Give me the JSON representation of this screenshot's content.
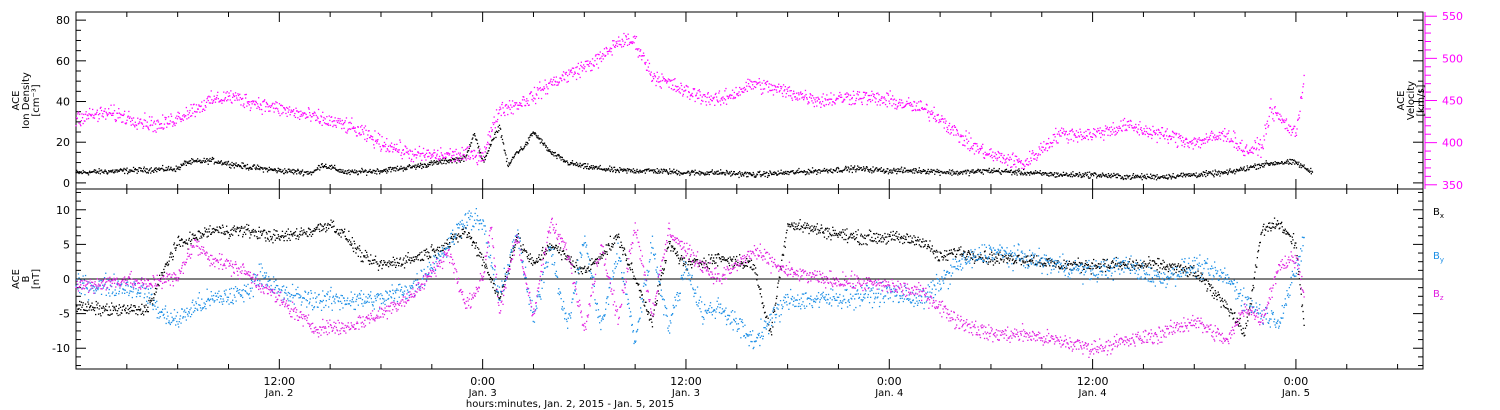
{
  "colors": {
    "density": "#000000",
    "velocity": "#ff00ff",
    "bx": "#000000",
    "by": "#1e90e6",
    "bz": "#e020e0"
  },
  "chart_data": {
    "xlabel": "hours:minutes, Jan. 2, 2015 - Jan. 5, 2015",
    "x_unit": "hours since 2015-01-02 00:00 UT",
    "xlim": [
      0,
      79.5
    ],
    "x_ticks": [
      {
        "x": 12,
        "time": "12:00",
        "date": "Jan. 2"
      },
      {
        "x": 24,
        "time": "0:00",
        "date": "Jan. 3"
      },
      {
        "x": 36,
        "time": "12:00",
        "date": "Jan. 3"
      },
      {
        "x": 48,
        "time": "0:00",
        "date": "Jan. 4"
      },
      {
        "x": 60,
        "time": "12:00",
        "date": "Jan. 4"
      },
      {
        "x": 72,
        "time": "0:00",
        "date": "Jan. 5"
      }
    ],
    "panels": [
      {
        "type": "scatter",
        "name": "plasma",
        "ylabel_left": [
          "ACE",
          "Ion Density",
          "[cm⁻³]"
        ],
        "ylabel_right": [
          "ACE",
          "Velocity",
          "[km/s]"
        ],
        "ylim_left": [
          -3,
          84
        ],
        "ylim_right": [
          345,
          555
        ],
        "yticks_left": [
          0,
          20,
          40,
          60,
          80
        ],
        "yticks_right": [
          350,
          400,
          450,
          500,
          550
        ],
        "series": [
          {
            "key": "density",
            "axis": "left",
            "noise": 1.2,
            "x": [
              0,
              3,
              6,
              6.5,
              8,
              10,
              12,
              14,
              14.5,
              16,
              18,
              20,
              22,
              23,
              23.5,
              24,
              25,
              25.5,
              26,
              26.5,
              27,
              28,
              29,
              30,
              32,
              34,
              36,
              38,
              40,
              42,
              44,
              46,
              48,
              50,
              52,
              54,
              56,
              58,
              60,
              62,
              64,
              66,
              68,
              70,
              71,
              72,
              73
            ],
            "y": [
              5,
              6,
              7,
              10,
              11,
              8,
              6,
              5,
              9,
              5,
              6,
              8,
              11,
              12,
              25,
              10,
              28,
              8,
              15,
              18,
              25,
              15,
              10,
              8,
              6,
              6,
              5,
              5,
              4,
              5,
              6,
              7,
              6,
              6,
              5,
              6,
              5,
              4,
              4,
              3,
              3,
              4,
              5,
              9,
              10,
              10,
              5
            ]
          },
          {
            "key": "velocity",
            "axis": "right",
            "noise": 8,
            "x": [
              0,
              2,
              4,
              5,
              6,
              7,
              8,
              9,
              10,
              12,
              14,
              15,
              16,
              18,
              20,
              22,
              24,
              25,
              26,
              27,
              28,
              30,
              31,
              32,
              33,
              34,
              35,
              36,
              38,
              40,
              42,
              44,
              46,
              48,
              50,
              51,
              52,
              53,
              54,
              56,
              58,
              60,
              62,
              64,
              66,
              68,
              69,
              70,
              70.5,
              71,
              72,
              72.5
            ],
            "y": [
              430,
              435,
              425,
              420,
              430,
              440,
              450,
              455,
              450,
              440,
              430,
              425,
              420,
              400,
              385,
              385,
              385,
              440,
              445,
              455,
              470,
              490,
              500,
              520,
              520,
              480,
              470,
              460,
              450,
              470,
              460,
              450,
              455,
              450,
              440,
              430,
              410,
              395,
              385,
              375,
              410,
              410,
              420,
              410,
              400,
              410,
              390,
              395,
              440,
              430,
              410,
              480
            ]
          }
        ]
      },
      {
        "type": "scatter",
        "name": "magnetic-field",
        "ylabel_left": [
          "ACE",
          "B",
          "[nT]"
        ],
        "ylim_left": [
          -13,
          13
        ],
        "yticks_left": [
          -10,
          -5,
          0,
          5,
          10
        ],
        "zero_line": true,
        "legend_labels": [
          "Bx",
          "By",
          "Bz"
        ],
        "series": [
          {
            "key": "bx",
            "name": "Bx",
            "axis": "left",
            "noise": 0.8,
            "x": [
              0,
              2,
              4,
              4.5,
              5,
              5.5,
              6,
              7,
              8,
              10,
              12,
              14,
              15,
              16,
              17,
              18,
              20,
              22,
              23,
              24,
              25,
              26,
              27,
              28,
              30,
              32,
              33,
              34,
              35,
              36,
              38,
              40,
              41,
              42,
              44,
              46,
              48,
              50,
              51,
              52,
              54,
              56,
              58,
              60,
              62,
              64,
              66,
              68,
              69,
              70,
              71,
              72,
              72.5
            ],
            "y": [
              -4,
              -4.5,
              -4.5,
              -3,
              0,
              3,
              5,
              6,
              7,
              7,
              6,
              7,
              8,
              6,
              3,
              2,
              3,
              5,
              7,
              3,
              -3,
              6,
              2,
              5,
              1,
              6,
              0,
              -6,
              5,
              2,
              3,
              2,
              -8,
              8,
              7,
              6,
              6,
              5.5,
              3,
              4,
              3,
              3,
              2,
              2,
              2,
              2,
              1,
              -4,
              -8,
              7,
              8,
              5,
              -7
            ]
          },
          {
            "key": "by",
            "name": "By",
            "axis": "left",
            "noise": 1.3,
            "x": [
              0,
              2,
              4,
              5,
              6,
              7,
              8,
              10,
              11,
              12,
              14,
              16,
              18,
              20,
              22,
              23,
              24,
              25,
              26,
              27,
              28,
              29,
              30,
              31,
              32,
              33,
              34,
              35,
              36,
              37,
              38,
              40,
              42,
              44,
              46,
              48,
              50,
              52,
              53,
              54,
              56,
              58,
              60,
              62,
              64,
              66,
              68,
              69,
              70,
              71,
              72,
              72.5
            ],
            "y": [
              -1,
              -1,
              -1.5,
              -5,
              -6,
              -4,
              -3,
              -2,
              1,
              -2,
              -3,
              -3,
              -3,
              -1,
              5,
              9,
              8,
              -3,
              7,
              -6,
              5,
              -7,
              6,
              -7,
              4,
              -9,
              5,
              -7,
              2,
              -5,
              -4,
              -9,
              -3,
              -3,
              -2.5,
              -2,
              -3,
              2,
              3,
              4,
              3,
              2,
              1,
              2,
              0,
              2,
              0,
              -3,
              -5,
              -6,
              1,
              6
            ]
          },
          {
            "key": "bz",
            "name": "Bz",
            "axis": "left",
            "noise": 1,
            "x": [
              0,
              2,
              3,
              4,
              5,
              6,
              6.5,
              7,
              8,
              10,
              12,
              14,
              16,
              18,
              20,
              22,
              23,
              24,
              24.5,
              25,
              26,
              27,
              28,
              29,
              30,
              31,
              32,
              33,
              34,
              35,
              36,
              38,
              40,
              42,
              44,
              46,
              48,
              50,
              52,
              54,
              56,
              58,
              60,
              62,
              64,
              66,
              68,
              69,
              70,
              71,
              72,
              72.5
            ],
            "y": [
              -1,
              -0.5,
              0,
              -1,
              0,
              0,
              3,
              5,
              3,
              1,
              -3,
              -7,
              -7,
              -5,
              -2,
              4,
              -4,
              0,
              8,
              -5,
              6,
              -5,
              8,
              4,
              -7,
              5,
              -6,
              8,
              -5,
              7,
              4,
              0,
              4,
              1,
              0,
              -0.5,
              -1,
              -2,
              -6,
              -8,
              -8,
              -9,
              -10,
              -9,
              -8,
              -6,
              -9,
              -4,
              -6,
              2,
              3,
              -2
            ]
          }
        ]
      }
    ]
  }
}
